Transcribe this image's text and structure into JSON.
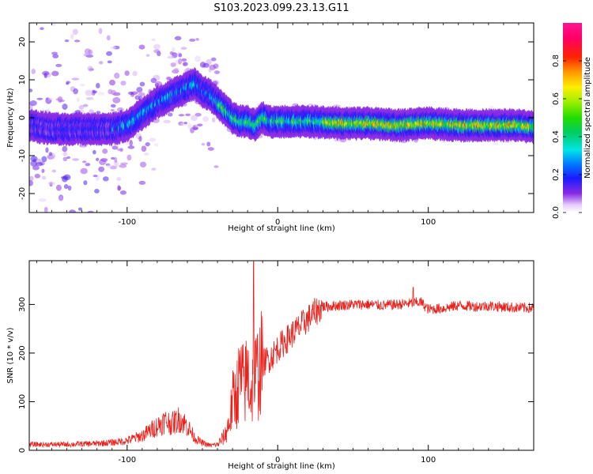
{
  "title": "S103.2023.099.23.13.G11",
  "chart_data": [
    {
      "type": "heatmap",
      "xlabel": "Height of straight line (km)",
      "ylabel": "Frequency (Hz)",
      "xlim": [
        -165,
        170
      ],
      "ylim": [
        -25,
        25
      ],
      "xticks": [
        -100,
        0,
        100
      ],
      "yticks": [
        -20,
        -10,
        0,
        10,
        20
      ],
      "xtick_labels": [
        "-100",
        "0",
        "100"
      ],
      "ytick_labels": [
        "-20",
        "-10",
        "0",
        "10",
        "20"
      ],
      "colorbar": {
        "label": "Normalized spectral amplitude",
        "range": [
          0,
          1
        ],
        "ticks": [
          0.0,
          0.2,
          0.4,
          0.6,
          0.8
        ],
        "tick_labels": [
          "0.0",
          "0.2",
          "0.4",
          "0.6",
          "0.8"
        ],
        "colormap": "gist_ncar-like (white-purple-blue-cyan-green-yellow-red-magenta)"
      },
      "ridge_frequency": {
        "x": [
          -165,
          -150,
          -130,
          -110,
          -100,
          -90,
          -80,
          -70,
          -60,
          -55,
          -50,
          -45,
          -40,
          -35,
          -30,
          -25,
          -20,
          -15,
          -10,
          -5,
          0,
          10,
          20,
          40,
          60,
          80,
          100,
          120,
          140,
          160,
          170
        ],
        "y": [
          -2,
          -3,
          -3,
          -3,
          -2,
          1,
          4,
          6,
          8,
          9,
          7,
          6,
          4,
          2,
          0,
          -1,
          -1,
          -2,
          0,
          -1,
          -1,
          -1,
          -1,
          -1.5,
          -1.5,
          -2,
          -1.5,
          -2,
          -2,
          -2,
          -2.5
        ]
      }
    },
    {
      "type": "line",
      "xlabel": "Height of straight line (km)",
      "ylabel": "SNR (10 * v/v)",
      "xlim": [
        -165,
        170
      ],
      "ylim": [
        0,
        390
      ],
      "xticks": [
        -100,
        0,
        100
      ],
      "yticks": [
        0,
        100,
        200,
        300
      ],
      "xtick_labels": [
        "-100",
        "0",
        "100"
      ],
      "ytick_labels": [
        "0",
        "100",
        "200",
        "300"
      ],
      "color": "#e8231e",
      "series": [
        {
          "x": [
            -165,
            -150,
            -140,
            -130,
            -120,
            -110,
            -100,
            -95,
            -90,
            -85,
            -80,
            -75,
            -70,
            -65,
            -60,
            -55,
            -50,
            -45,
            -40,
            -35,
            -32,
            -30,
            -27,
            -25,
            -22,
            -20,
            -18,
            -15,
            -12,
            -10,
            -5,
            0,
            5,
            10,
            15,
            20,
            25,
            30,
            40,
            50,
            60,
            70,
            80,
            90,
            95,
            100,
            110,
            120,
            130,
            140,
            150,
            160,
            170
          ],
          "y": [
            12,
            12,
            12,
            13,
            14,
            16,
            20,
            25,
            30,
            40,
            50,
            60,
            55,
            65,
            50,
            25,
            15,
            10,
            12,
            30,
            60,
            100,
            120,
            150,
            130,
            160,
            120,
            150,
            170,
            180,
            190,
            210,
            225,
            240,
            255,
            270,
            285,
            295,
            298,
            300,
            300,
            298,
            300,
            303,
            305,
            290,
            292,
            298,
            296,
            297,
            295,
            293,
            293
          ]
        }
      ]
    }
  ]
}
